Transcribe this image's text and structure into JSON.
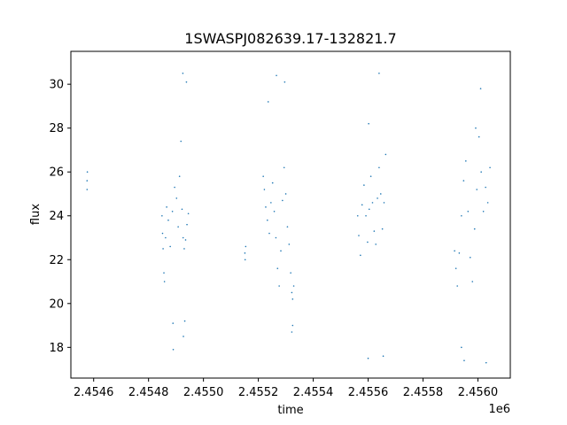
{
  "chart_data": {
    "type": "scatter",
    "title": "1SWASPJ082639.17-132821.7",
    "xlabel": "time",
    "ylabel": "flux",
    "x_offset_label": "1e6",
    "xlim": [
      2454517,
      2456118
    ],
    "ylim": [
      16.6,
      31.5
    ],
    "xticks": [
      2454600,
      2454800,
      2455000,
      2455200,
      2455400,
      2455600,
      2455800,
      2456000
    ],
    "xtick_labels": [
      "2.4546",
      "2.4548",
      "2.4550",
      "2.4552",
      "2.4554",
      "2.4556",
      "2.4558",
      "2.4560"
    ],
    "yticks": [
      18,
      20,
      22,
      24,
      26,
      28,
      30
    ],
    "ytick_labels": [
      "18",
      "20",
      "22",
      "24",
      "26",
      "28",
      "30"
    ],
    "grid": false,
    "legend": "none",
    "marker_color": "#1f77b4",
    "series": [
      {
        "x": [
          2454576,
          2454576,
          2454577,
          2454849,
          2454851,
          2454853,
          2454856,
          2454858,
          2454862,
          2454866,
          2454872,
          2454879,
          2454887,
          2454895,
          2454902,
          2454908,
          2454913,
          2454918,
          2454922,
          2454926,
          2454930,
          2454935,
          2454940,
          2454945,
          2454889,
          2454925,
          2454938,
          2454890,
          2454927,
          2454932,
          2455151,
          2455152,
          2455154,
          2455218,
          2455222,
          2455227,
          2455233,
          2455240,
          2455246,
          2455252,
          2455258,
          2455264,
          2455270,
          2455276,
          2455282,
          2455288,
          2455294,
          2455300,
          2455306,
          2455312,
          2455318,
          2455322,
          2455325,
          2455329,
          2455236,
          2455266,
          2455296,
          2455322,
          2455325,
          2455562,
          2455566,
          2455572,
          2455578,
          2455585,
          2455592,
          2455598,
          2455604,
          2455610,
          2455616,
          2455622,
          2455628,
          2455634,
          2455640,
          2455646,
          2455652,
          2455658,
          2455664,
          2455600,
          2455602,
          2455640,
          2455655,
          2455915,
          2455920,
          2455925,
          2455932,
          2455940,
          2455948,
          2455956,
          2455964,
          2455972,
          2455980,
          2455988,
          2455996,
          2456004,
          2456012,
          2456020,
          2456028,
          2456036,
          2456044,
          2455940,
          2455950,
          2455992,
          2456010,
          2456030
        ],
        "y": [
          25.2,
          25.6,
          26.0,
          24.0,
          23.2,
          22.5,
          21.4,
          21.0,
          23.0,
          24.4,
          23.8,
          22.6,
          24.2,
          25.3,
          24.8,
          23.5,
          25.8,
          27.4,
          24.3,
          23.0,
          22.5,
          22.9,
          23.6,
          24.1,
          19.1,
          30.5,
          30.1,
          17.9,
          18.5,
          19.2,
          22.3,
          22.0,
          22.6,
          25.8,
          25.2,
          24.4,
          23.8,
          23.2,
          24.6,
          25.5,
          24.2,
          23.0,
          21.6,
          20.8,
          22.4,
          24.7,
          26.2,
          25.0,
          23.5,
          22.7,
          21.4,
          20.5,
          20.2,
          20.8,
          29.2,
          30.4,
          30.1,
          18.7,
          19.0,
          24.0,
          23.1,
          22.2,
          24.5,
          25.4,
          24.0,
          22.8,
          24.3,
          25.8,
          24.6,
          23.3,
          22.7,
          24.8,
          26.2,
          25.0,
          23.4,
          24.6,
          26.8,
          17.5,
          28.2,
          30.5,
          17.6,
          22.4,
          21.6,
          20.8,
          22.3,
          24.0,
          25.6,
          26.5,
          24.2,
          22.1,
          21.0,
          23.4,
          25.2,
          27.6,
          26.0,
          24.2,
          25.3,
          24.6,
          26.2,
          18.0,
          17.4,
          28.0,
          29.8,
          17.3
        ]
      }
    ]
  }
}
